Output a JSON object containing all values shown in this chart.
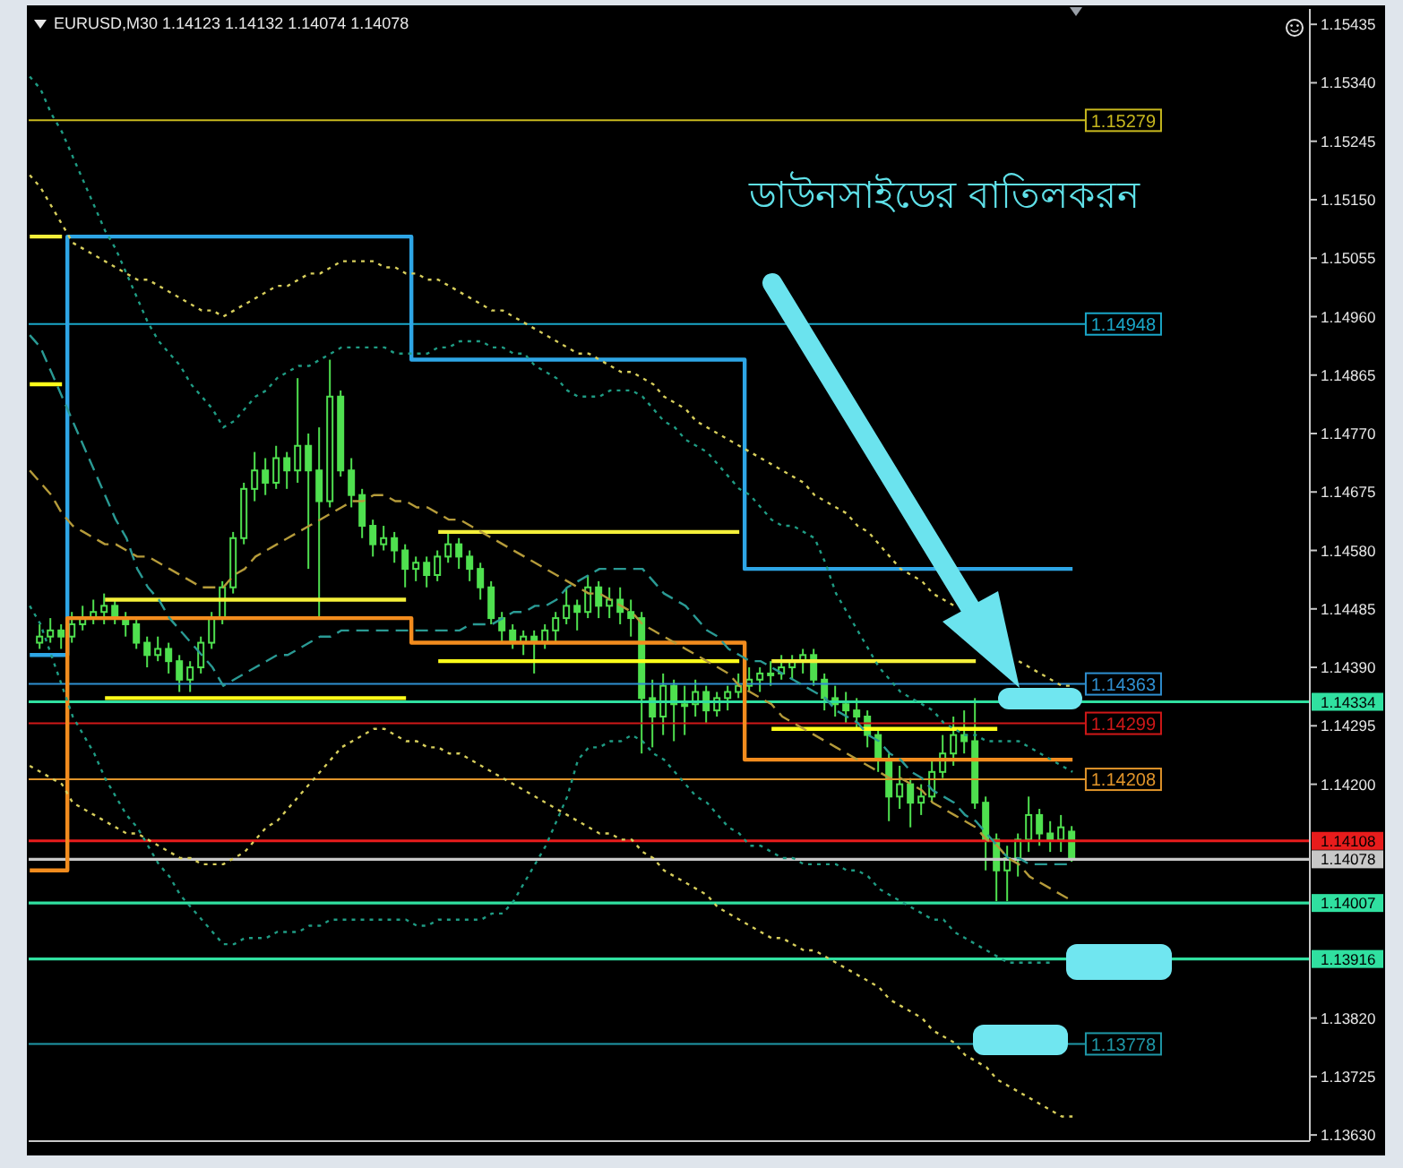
{
  "chart_data": {
    "type": "candlestick",
    "title": "EURUSD,M30 1.14123 1.14132 1.14074 1.14078",
    "annotations": [
      "ডাউনসাইডের বাতিলকরন"
    ],
    "categories": [
      null,
      null,
      null,
      null,
      null,
      null,
      null,
      null,
      null,
      null,
      null,
      null,
      null,
      null,
      null,
      null,
      null,
      null,
      null,
      null,
      null,
      null,
      null,
      null,
      null,
      null,
      null,
      null,
      null,
      null,
      null,
      null,
      null,
      null,
      null,
      null,
      null,
      null,
      null,
      null,
      null,
      null,
      null,
      null,
      null,
      null,
      null,
      null,
      null,
      null,
      null,
      null,
      null,
      null,
      null,
      null,
      null,
      null,
      null,
      null,
      null,
      null,
      null,
      null,
      null,
      null,
      null,
      null,
      null,
      null,
      null,
      null,
      null,
      null,
      null,
      null,
      null,
      null,
      null,
      null,
      null,
      null,
      null,
      null,
      null,
      null,
      null,
      null,
      null,
      null,
      null,
      null,
      null,
      null,
      null,
      null,
      null,
      null
    ],
    "color": "#4fe04f",
    "ohlc": [
      null,
      [
        1.1443,
        1.1446,
        1.1442,
        1.1444
      ],
      [
        1.1444,
        1.1447,
        1.1443,
        1.1445
      ],
      [
        1.1445,
        1.1446,
        1.1442,
        1.1444
      ],
      [
        1.1444,
        1.1448,
        1.1443,
        1.1446
      ],
      [
        1.1446,
        1.1449,
        1.1445,
        1.1447
      ],
      [
        1.1447,
        1.145,
        1.1446,
        1.1448
      ],
      [
        1.1448,
        1.1451,
        1.1446,
        1.1449
      ],
      [
        1.1449,
        1.145,
        1.1446,
        1.1447
      ],
      [
        1.1447,
        1.1448,
        1.1444,
        1.1446
      ],
      [
        1.1446,
        1.1447,
        1.1442,
        1.1443
      ],
      [
        1.1443,
        1.1444,
        1.1439,
        1.1441
      ],
      [
        1.1441,
        1.1444,
        1.144,
        1.1442
      ],
      [
        1.1442,
        1.1443,
        1.1438,
        1.144
      ],
      [
        1.144,
        1.1441,
        1.1435,
        1.1437
      ],
      [
        1.1437,
        1.144,
        1.1435,
        1.1439
      ],
      [
        1.1439,
        1.1444,
        1.1438,
        1.1443
      ],
      [
        1.1443,
        1.1448,
        1.1442,
        1.1447
      ],
      [
        1.1447,
        1.1453,
        1.1446,
        1.1452
      ],
      [
        1.1452,
        1.1461,
        1.1451,
        1.146
      ],
      [
        1.146,
        1.1469,
        1.1459,
        1.1468
      ],
      [
        1.1468,
        1.1474,
        1.1466,
        1.1471
      ],
      [
        1.1471,
        1.1473,
        1.1467,
        1.1469
      ],
      [
        1.1469,
        1.1475,
        1.1468,
        1.1473
      ],
      [
        1.1473,
        1.1474,
        1.1468,
        1.1471
      ],
      [
        1.1471,
        1.1486,
        1.1469,
        1.1475
      ],
      [
        1.1475,
        1.1477,
        1.1455,
        1.1471
      ],
      [
        1.1471,
        1.1478,
        1.1447,
        1.1466
      ],
      [
        1.1466,
        1.1489,
        1.1465,
        1.1483
      ],
      [
        1.1483,
        1.1484,
        1.147,
        1.1471
      ],
      [
        1.1471,
        1.1473,
        1.1465,
        1.1467
      ],
      [
        1.1467,
        1.1468,
        1.146,
        1.1462
      ],
      [
        1.1462,
        1.1463,
        1.1457,
        1.1459
      ],
      [
        1.1459,
        1.1462,
        1.1458,
        1.146
      ],
      [
        1.146,
        1.1461,
        1.1456,
        1.1458
      ],
      [
        1.1458,
        1.1459,
        1.1452,
        1.1455
      ],
      [
        1.1455,
        1.1457,
        1.1453,
        1.1456
      ],
      [
        1.1456,
        1.1457,
        1.1452,
        1.1454
      ],
      [
        1.1454,
        1.1458,
        1.1453,
        1.1457
      ],
      [
        1.1457,
        1.1461,
        1.1456,
        1.1459
      ],
      [
        1.1459,
        1.146,
        1.1455,
        1.1457
      ],
      [
        1.1457,
        1.1458,
        1.1453,
        1.1455
      ],
      [
        1.1455,
        1.1456,
        1.145,
        1.1452
      ],
      [
        1.1452,
        1.1453,
        1.1446,
        1.1447
      ],
      [
        1.1447,
        1.1448,
        1.1443,
        1.1445
      ],
      [
        1.1445,
        1.1446,
        1.1442,
        1.1443
      ],
      [
        1.1443,
        1.1445,
        1.1441,
        1.1444
      ],
      [
        1.1444,
        1.1445,
        1.1438,
        1.1443
      ],
      [
        1.1443,
        1.1446,
        1.1442,
        1.1445
      ],
      [
        1.1445,
        1.1448,
        1.1443,
        1.1447
      ],
      [
        1.1447,
        1.1452,
        1.1446,
        1.1449
      ],
      [
        1.1449,
        1.145,
        1.1445,
        1.1448
      ],
      [
        1.1448,
        1.1454,
        1.1447,
        1.1452
      ],
      [
        1.1452,
        1.1453,
        1.1447,
        1.1449
      ],
      [
        1.1449,
        1.1452,
        1.1447,
        1.145
      ],
      [
        1.145,
        1.1452,
        1.1446,
        1.1448
      ],
      [
        1.1448,
        1.145,
        1.1444,
        1.1447
      ],
      [
        1.1447,
        1.1448,
        1.1425,
        1.1434
      ],
      [
        1.1434,
        1.1437,
        1.1426,
        1.1431
      ],
      [
        1.1431,
        1.1438,
        1.1428,
        1.1436
      ],
      [
        1.1436,
        1.1437,
        1.1427,
        1.1433
      ],
      [
        1.1433,
        1.1436,
        1.1428,
        1.1433
      ],
      [
        1.1433,
        1.1437,
        1.1431,
        1.1435
      ],
      [
        1.1435,
        1.1436,
        1.143,
        1.1432
      ],
      [
        1.1432,
        1.1435,
        1.1431,
        1.1434
      ],
      [
        1.1434,
        1.1436,
        1.1432,
        1.1435
      ],
      [
        1.1435,
        1.1438,
        1.1434,
        1.1436
      ],
      [
        1.1436,
        1.1439,
        1.1435,
        1.1437
      ],
      [
        1.1437,
        1.1439,
        1.1435,
        1.1438
      ],
      [
        1.1438,
        1.144,
        1.1436,
        1.1438
      ],
      [
        1.1438,
        1.1441,
        1.1437,
        1.1439
      ],
      [
        1.1439,
        1.1441,
        1.1437,
        1.144
      ],
      [
        1.144,
        1.1442,
        1.1438,
        1.1441
      ],
      [
        1.1441,
        1.1442,
        1.1436,
        1.1437
      ],
      [
        1.1437,
        1.1438,
        1.1432,
        1.1434
      ],
      [
        1.1434,
        1.1436,
        1.1431,
        1.1433
      ],
      [
        1.1433,
        1.1435,
        1.143,
        1.1432
      ],
      [
        1.1432,
        1.1434,
        1.1429,
        1.1431
      ],
      [
        1.1431,
        1.1432,
        1.1426,
        1.1428
      ],
      [
        1.1428,
        1.1429,
        1.1422,
        1.1424
      ],
      [
        1.1424,
        1.1425,
        1.1414,
        1.1418
      ],
      [
        1.1418,
        1.1423,
        1.1416,
        1.142
      ],
      [
        1.142,
        1.1421,
        1.1413,
        1.1417
      ],
      [
        1.1417,
        1.142,
        1.1415,
        1.1418
      ],
      [
        1.1418,
        1.1424,
        1.1417,
        1.1422
      ],
      [
        1.1422,
        1.1428,
        1.1421,
        1.1425
      ],
      [
        1.1425,
        1.1431,
        1.1423,
        1.1428
      ],
      [
        1.1428,
        1.1432,
        1.1425,
        1.1427
      ],
      [
        1.1427,
        1.1434,
        1.1416,
        1.1417
      ],
      [
        1.1417,
        1.1418,
        1.1406,
        1.1411
      ],
      [
        1.1411,
        1.1412,
        1.1401,
        1.1406
      ],
      [
        1.1406,
        1.141,
        1.1401,
        1.1408
      ],
      [
        1.1408,
        1.1412,
        1.1405,
        1.1411
      ],
      [
        1.1411,
        1.1418,
        1.1409,
        1.1415
      ],
      [
        1.1415,
        1.1416,
        1.141,
        1.1412
      ],
      [
        1.1412,
        1.1414,
        1.1409,
        1.1411
      ],
      [
        1.1411,
        1.1415,
        1.1409,
        1.1413
      ],
      [
        1.14123,
        1.14132,
        1.14074,
        1.14078
      ]
    ],
    "series": [
      {
        "type": "step",
        "color": "#2ea6e6",
        "line_style": "solid",
        "values": [
          1.1441,
          1.1441,
          1.1441,
          1.1441,
          1.1509,
          1.1509,
          1.1509,
          1.1509,
          1.1509,
          1.1509,
          1.1509,
          1.1509,
          1.1509,
          1.1509,
          1.1509,
          1.1509,
          1.1509,
          1.1509,
          1.1509,
          1.1509,
          1.1509,
          1.1509,
          1.1509,
          1.1509,
          1.1509,
          1.1509,
          1.1509,
          1.1509,
          1.1509,
          1.1509,
          1.1509,
          1.1509,
          1.1509,
          1.1509,
          1.1509,
          1.1509,
          1.1489,
          1.1489,
          1.1489,
          1.1489,
          1.1489,
          1.1489,
          1.1489,
          1.1489,
          1.1489,
          1.1489,
          1.1489,
          1.1489,
          1.1489,
          1.1489,
          1.1489,
          1.1489,
          1.1489,
          1.1489,
          1.1489,
          1.1489,
          1.1489,
          1.1489,
          1.1489,
          1.1489,
          1.1489,
          1.1489,
          1.1489,
          1.1489,
          1.1489,
          1.1489,
          1.1489,
          1.1455,
          1.1455,
          1.1455,
          1.1455,
          1.1455,
          1.1455,
          1.1455,
          1.1455,
          1.1455,
          1.1455,
          1.1455,
          1.1455,
          1.1455,
          1.1455,
          1.1455,
          1.1455,
          1.1455,
          1.1455,
          1.1455,
          1.1455,
          1.1455,
          1.1455,
          1.1455,
          1.1455,
          1.1455,
          1.1455,
          1.1455,
          1.1455,
          1.1455,
          1.1455,
          1.1455
        ]
      },
      {
        "type": "step",
        "color": "#f28c1e",
        "line_style": "solid",
        "values": [
          1.1406,
          1.1406,
          1.1406,
          1.1406,
          1.1447,
          1.1447,
          1.1447,
          1.1447,
          1.1447,
          1.1447,
          1.1447,
          1.1447,
          1.1447,
          1.1447,
          1.1447,
          1.1447,
          1.1447,
          1.1447,
          1.1447,
          1.1447,
          1.1447,
          1.1447,
          1.1447,
          1.1447,
          1.1447,
          1.1447,
          1.1447,
          1.1447,
          1.1447,
          1.1447,
          1.1447,
          1.1447,
          1.1447,
          1.1447,
          1.1447,
          1.1447,
          1.1443,
          1.1443,
          1.1443,
          1.1443,
          1.1443,
          1.1443,
          1.1443,
          1.1443,
          1.1443,
          1.1443,
          1.1443,
          1.1443,
          1.1443,
          1.1443,
          1.1443,
          1.1443,
          1.1443,
          1.1443,
          1.1443,
          1.1443,
          1.1443,
          1.1443,
          1.1443,
          1.1443,
          1.1443,
          1.1443,
          1.1443,
          1.1443,
          1.1443,
          1.1443,
          1.1443,
          1.1424,
          1.1424,
          1.1424,
          1.1424,
          1.1424,
          1.1424,
          1.1424,
          1.1424,
          1.1424,
          1.1424,
          1.1424,
          1.1424,
          1.1424,
          1.1424,
          1.1424,
          1.1424,
          1.1424,
          1.1424,
          1.1424,
          1.1424,
          1.1424,
          1.1424,
          1.1424,
          1.1424,
          1.1424,
          1.1424,
          1.1424,
          1.1424,
          1.1424,
          1.1424,
          1.1424
        ]
      },
      {
        "type": "line",
        "color": "#f5f03a",
        "line_style": "solid",
        "values": [
          1.1509,
          1.1509,
          1.1509,
          1.1509,
          null,
          null,
          null,
          1.145,
          1.145,
          1.145,
          1.145,
          1.145,
          1.145,
          1.145,
          1.145,
          1.145,
          1.145,
          1.145,
          1.145,
          1.145,
          1.145,
          1.145,
          1.145,
          1.145,
          1.145,
          1.145,
          1.145,
          1.145,
          1.145,
          1.145,
          1.145,
          1.145,
          1.145,
          1.145,
          1.145,
          1.145,
          null,
          null,
          1.1461,
          1.1461,
          1.1461,
          1.1461,
          1.1461,
          1.1461,
          1.1461,
          1.1461,
          1.1461,
          1.1461,
          1.1461,
          1.1461,
          1.1461,
          1.1461,
          1.1461,
          1.1461,
          1.1461,
          1.1461,
          1.1461,
          1.1461,
          1.1461,
          1.1461,
          1.1461,
          1.1461,
          1.1461,
          1.1461,
          1.1461,
          1.1461,
          1.1461,
          null,
          null,
          1.144,
          1.144,
          1.144,
          1.144,
          1.144,
          1.144,
          1.144,
          1.144,
          1.144,
          1.144,
          1.144,
          1.144,
          1.144,
          1.144,
          1.144,
          1.144,
          1.144,
          1.144,
          1.144,
          1.144,
          null,
          null,
          null,
          null,
          null,
          null,
          null,
          null,
          null
        ]
      },
      {
        "type": "line",
        "color": "#ffff1a",
        "line_style": "solid",
        "values": [
          1.1485,
          1.1485,
          1.1485,
          1.1485,
          null,
          null,
          null,
          1.1434,
          1.1434,
          1.1434,
          1.1434,
          1.1434,
          1.1434,
          1.1434,
          1.1434,
          1.1434,
          1.1434,
          1.1434,
          1.1434,
          1.1434,
          1.1434,
          1.1434,
          1.1434,
          1.1434,
          1.1434,
          1.1434,
          1.1434,
          1.1434,
          1.1434,
          1.1434,
          1.1434,
          1.1434,
          1.1434,
          1.1434,
          1.1434,
          1.1434,
          null,
          null,
          1.144,
          1.144,
          1.144,
          1.144,
          1.144,
          1.144,
          1.144,
          1.144,
          1.144,
          1.144,
          1.144,
          1.144,
          1.144,
          1.144,
          1.144,
          1.144,
          1.144,
          1.144,
          1.144,
          1.144,
          1.144,
          1.144,
          1.144,
          1.144,
          1.144,
          1.144,
          1.144,
          1.144,
          1.144,
          null,
          null,
          1.1429,
          1.1429,
          1.1429,
          1.1429,
          1.1429,
          1.1429,
          1.1429,
          1.1429,
          1.1429,
          1.1429,
          1.1429,
          1.1429,
          1.1429,
          1.1429,
          1.1429,
          1.1429,
          1.1429,
          1.1429,
          1.1429,
          1.1429,
          1.1429,
          1.1429,
          null,
          null,
          null,
          null,
          null,
          null,
          null
        ]
      },
      {
        "type": "line",
        "color": "#d8cf5c",
        "line_style": "dotted",
        "values": [
          1.1519,
          1.1517,
          1.1514,
          1.1511,
          1.1508,
          1.1507,
          1.1506,
          1.1505,
          1.1504,
          1.1503,
          1.1502,
          1.1502,
          1.1501,
          1.15,
          1.1499,
          1.1498,
          1.1497,
          1.1497,
          1.1496,
          1.1497,
          1.1498,
          1.1499,
          1.15,
          1.1501,
          1.1501,
          1.1502,
          1.1503,
          1.1503,
          1.1504,
          1.1505,
          1.1505,
          1.1505,
          1.1505,
          1.1504,
          1.1504,
          1.1503,
          1.1503,
          1.1502,
          1.1502,
          1.1501,
          1.15,
          1.1499,
          1.1498,
          1.1497,
          1.1497,
          1.1496,
          1.1495,
          1.1494,
          1.1493,
          1.1492,
          1.1491,
          1.149,
          1.149,
          1.1489,
          1.1488,
          1.1487,
          1.1487,
          1.1486,
          1.1485,
          1.1483,
          1.1482,
          1.1481,
          1.1479,
          1.1478,
          1.1477,
          1.1476,
          1.1475,
          1.1474,
          1.1473,
          1.1472,
          1.1471,
          1.147,
          1.1469,
          1.1467,
          1.1466,
          1.1465,
          1.1464,
          1.1462,
          1.1461,
          1.1459,
          1.1457,
          1.1455,
          1.1454,
          1.1453,
          1.1451,
          1.145,
          1.1449,
          null,
          null,
          null,
          null,
          null,
          1.144,
          1.1439,
          1.1438,
          1.1437,
          1.1436,
          1.1436
        ]
      },
      {
        "type": "line",
        "color": "#1f9c84",
        "line_style": "dotted",
        "values": [
          1.1535,
          1.1533,
          1.1529,
          1.1526,
          1.1522,
          1.1518,
          1.1514,
          1.151,
          1.1507,
          1.1503,
          1.1499,
          1.1495,
          1.1492,
          1.149,
          1.1488,
          1.1485,
          1.1483,
          1.1481,
          1.1478,
          1.1479,
          1.1481,
          1.1483,
          1.1484,
          1.1486,
          1.1487,
          1.1488,
          1.1488,
          1.1489,
          1.149,
          1.1491,
          1.1491,
          1.1491,
          1.1491,
          1.1491,
          1.149,
          1.149,
          1.149,
          1.149,
          1.1491,
          1.1491,
          1.1492,
          1.1492,
          1.1492,
          1.1491,
          1.1491,
          1.149,
          1.149,
          1.1488,
          1.1487,
          1.1486,
          1.1484,
          1.1483,
          1.1483,
          1.1483,
          1.1484,
          1.1484,
          1.1484,
          1.1483,
          1.1481,
          1.1479,
          1.1478,
          1.1476,
          1.1475,
          1.1474,
          1.1472,
          1.147,
          1.1468,
          1.1467,
          1.1465,
          1.1463,
          1.1462,
          1.1462,
          1.1461,
          1.146,
          1.1456,
          1.1451,
          1.1448,
          1.1445,
          1.1442,
          1.1439,
          1.1437,
          1.1435,
          1.1434,
          1.1433,
          1.1432,
          1.143,
          1.1429,
          1.1428,
          1.1428,
          1.1427,
          1.1427,
          1.1427,
          1.1427,
          1.1426,
          1.1425,
          1.1424,
          1.1423,
          1.1422
        ]
      },
      {
        "type": "line",
        "color": "#d8cf5c",
        "line_style": "dotted",
        "values": [
          1.1423,
          1.1422,
          1.1421,
          1.142,
          1.1417,
          1.1416,
          1.1415,
          1.1414,
          1.1413,
          1.1412,
          1.1412,
          1.1411,
          1.141,
          1.1409,
          1.1408,
          1.1408,
          1.1407,
          1.1407,
          1.1407,
          1.1408,
          1.1409,
          1.1411,
          1.1413,
          1.1414,
          1.1416,
          1.1418,
          1.142,
          1.1422,
          1.1424,
          1.1426,
          1.1427,
          1.1428,
          1.1429,
          1.1429,
          1.1428,
          1.1427,
          1.1427,
          1.1426,
          1.1426,
          1.1425,
          1.1425,
          1.1424,
          1.1423,
          1.1422,
          1.1421,
          1.142,
          1.1419,
          1.1418,
          1.1417,
          1.1416,
          1.1415,
          1.1414,
          1.1413,
          1.1412,
          1.1412,
          1.1411,
          1.1411,
          1.1409,
          1.1408,
          1.1406,
          1.1405,
          1.1404,
          1.1403,
          1.1402,
          1.14,
          1.1399,
          1.1398,
          1.1397,
          1.1396,
          1.1395,
          1.1395,
          1.1394,
          1.1393,
          1.1393,
          1.1392,
          1.1391,
          1.139,
          1.1389,
          1.1388,
          1.1387,
          1.1385,
          1.1384,
          1.1383,
          1.1382,
          1.138,
          1.1379,
          1.1378,
          1.1376,
          1.1375,
          1.1374,
          1.1372,
          1.1371,
          1.137,
          1.1369,
          1.1368,
          1.1367,
          1.1366,
          1.1366
        ]
      },
      {
        "type": "line",
        "color": "#1f9c84",
        "line_style": "dotted",
        "values": [
          1.1449,
          1.1446,
          1.1441,
          1.1436,
          1.1431,
          1.1428,
          1.1425,
          1.1421,
          1.1418,
          1.1415,
          1.1413,
          1.141,
          1.1407,
          1.1405,
          1.1402,
          1.14,
          1.1398,
          1.1396,
          1.1394,
          1.1394,
          1.1395,
          1.1395,
          1.1395,
          1.1396,
          1.1396,
          1.1396,
          1.1397,
          1.1397,
          1.1398,
          1.1398,
          1.1398,
          1.1398,
          1.1398,
          1.1398,
          1.1398,
          1.1398,
          1.1397,
          1.1397,
          1.1398,
          1.1398,
          1.1398,
          1.1398,
          1.1398,
          1.1399,
          1.1399,
          1.1401,
          1.1404,
          1.1407,
          1.141,
          1.1414,
          1.1418,
          1.1424,
          1.1426,
          1.1426,
          1.1427,
          1.1427,
          1.1428,
          1.1427,
          1.1425,
          1.1424,
          1.1422,
          1.142,
          1.1418,
          1.1417,
          1.1415,
          1.1413,
          1.1412,
          1.141,
          1.141,
          1.1409,
          1.1408,
          1.1408,
          1.1407,
          1.1407,
          1.1407,
          1.1407,
          1.1406,
          1.1406,
          1.1405,
          1.1403,
          1.1402,
          1.1401,
          1.14,
          1.1399,
          1.1398,
          1.1398,
          1.1396,
          1.1395,
          1.1394,
          1.1393,
          1.1392,
          1.1391,
          1.1391,
          1.1391,
          1.1391,
          1.1391,
          null,
          null
        ]
      },
      {
        "type": "line",
        "color": "#2a9a94",
        "line_style": "dashed",
        "values": [
          1.1493,
          1.1491,
          1.1487,
          1.1483,
          1.1479,
          1.1475,
          1.1471,
          1.1467,
          1.1463,
          1.146,
          1.1455,
          1.1452,
          1.145,
          1.1447,
          1.1445,
          1.1443,
          1.1441,
          1.1439,
          1.1436,
          1.1437,
          1.1438,
          1.1439,
          1.144,
          1.1441,
          1.1441,
          1.1442,
          1.1443,
          1.1444,
          1.1444,
          1.1445,
          1.1445,
          1.1445,
          1.1445,
          1.1445,
          1.1445,
          1.1445,
          1.1445,
          1.1445,
          1.1445,
          1.1445,
          1.1445,
          1.1446,
          1.1446,
          1.1446,
          1.1447,
          1.1448,
          1.1448,
          1.1449,
          1.1449,
          1.145,
          1.1452,
          1.1453,
          1.1454,
          1.1455,
          1.1455,
          1.1455,
          1.1455,
          1.1455,
          1.1453,
          1.1451,
          1.145,
          1.1449,
          1.1447,
          1.1445,
          1.1444,
          1.1442,
          1.1441,
          1.144,
          1.144,
          1.1439,
          1.1438,
          1.1437,
          1.1436,
          1.1435,
          1.1434,
          1.1432,
          1.1431,
          1.143,
          1.1428,
          1.1427,
          1.1425,
          1.1424,
          1.1422,
          1.1421,
          1.1419,
          1.1418,
          1.1417,
          1.1415,
          1.1414,
          1.1412,
          1.141,
          1.1408,
          1.1408,
          1.1407,
          1.1407,
          1.1407,
          1.1407,
          1.1407
        ]
      },
      {
        "type": "line",
        "color": "#b59b3a",
        "line_style": "dashed",
        "values": [
          1.1471,
          1.1469,
          1.1467,
          1.1464,
          1.1462,
          1.1461,
          1.146,
          1.1459,
          1.1459,
          1.1458,
          1.1457,
          1.1457,
          1.1456,
          1.1455,
          1.1454,
          1.1453,
          1.1452,
          1.1452,
          1.1452,
          1.1454,
          1.1455,
          1.1457,
          1.1458,
          1.1459,
          1.146,
          1.1461,
          1.1462,
          1.1463,
          1.1464,
          1.1465,
          1.1466,
          1.1466,
          1.1467,
          1.1467,
          1.1466,
          1.1466,
          1.1465,
          1.1465,
          1.1464,
          1.1463,
          1.1463,
          1.1462,
          1.1461,
          1.146,
          1.1459,
          1.1458,
          1.1457,
          1.1456,
          1.1455,
          1.1454,
          1.1453,
          1.1452,
          1.1451,
          1.1451,
          1.145,
          1.1449,
          1.1448,
          1.1446,
          1.1445,
          1.1444,
          1.1443,
          1.1442,
          1.1441,
          1.144,
          1.1439,
          1.1438,
          1.1436,
          1.1435,
          1.1434,
          1.1433,
          1.1431,
          1.143,
          1.1429,
          1.1428,
          1.1427,
          1.1426,
          1.1425,
          1.1424,
          1.1423,
          1.1422,
          1.1421,
          1.1421,
          1.142,
          1.1419,
          1.1417,
          1.1416,
          1.1415,
          1.1414,
          1.1413,
          1.1411,
          1.141,
          1.1408,
          1.1407,
          1.1405,
          1.1404,
          1.1403,
          1.1402,
          1.1401
        ]
      }
    ],
    "ylim": [
      1.1362,
      1.1546
    ],
    "yticks": [
      1.15435,
      {
        "value": 1.1534,
        "label": "1.15340"
      },
      1.15245,
      {
        "value": 1.1515,
        "label": "1.15150"
      },
      1.15055,
      {
        "value": 1.1496,
        "label": "1.14960"
      },
      1.14865,
      {
        "value": 1.1477,
        "label": "1.14770"
      },
      1.14675,
      {
        "value": 1.1458,
        "label": "1.14580"
      },
      1.14485,
      {
        "value": 1.1439,
        "label": "1.14390"
      },
      1.14295,
      {
        "value": 1.142,
        "label": "1.14200"
      },
      {
        "value": 1.1382,
        "label": "1.13820"
      },
      1.13725,
      {
        "value": 1.1363,
        "label": "1.13630"
      }
    ],
    "tick_labels": "y",
    "ref_lines": [
      {
        "axis": "y",
        "value": 1.15279,
        "label": "1.15279",
        "color": "#c8b81e"
      },
      {
        "axis": "y",
        "value": 1.14948,
        "label": "1.14948",
        "color": "#1aa7c9"
      },
      {
        "axis": "y",
        "value": 1.14363,
        "label": "1.14363",
        "color": "#2f8fd0"
      },
      {
        "axis": "y",
        "value": 1.14299,
        "label": "1.14299",
        "color": "#d01818"
      },
      {
        "axis": "y",
        "value": 1.14208,
        "label": "1.14208",
        "color": "#e0942a"
      },
      {
        "axis": "y",
        "value": 1.13778,
        "label": "1.13778",
        "color": "#1f98a8"
      },
      {
        "axis": "y",
        "value": 1.14334,
        "label": "1.14334",
        "color": "#30e0a0"
      },
      {
        "axis": "y",
        "value": 1.14108,
        "label": "1.14108",
        "color": "#e81c1c"
      },
      {
        "axis": "y",
        "value": 1.14078,
        "label": "1.14078",
        "color": "#c8c8c8"
      },
      {
        "axis": "y",
        "value": 1.14007,
        "label": "1.14007",
        "color": "#30e0a0"
      },
      {
        "axis": "y",
        "value": 1.13916,
        "label": "1.13916",
        "color": "#30e0a0"
      }
    ]
  }
}
